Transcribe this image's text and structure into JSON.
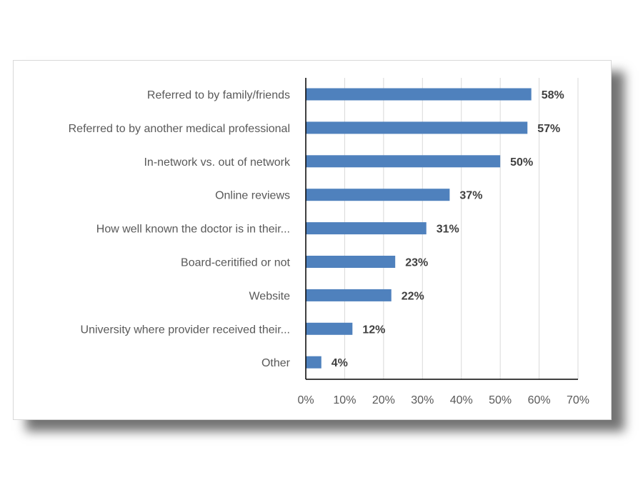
{
  "chart_data": {
    "type": "bar",
    "orientation": "horizontal",
    "categories": [
      "Referred to by family/friends",
      "Referred to by another medical professional",
      "In-network vs. out of network",
      "Online reviews",
      "How well known the doctor is in their...",
      "Board-ceritified or not",
      "Website",
      "University where provider received their...",
      "Other"
    ],
    "values": [
      58,
      57,
      50,
      37,
      31,
      23,
      22,
      12,
      4
    ],
    "value_labels": [
      "58%",
      "57%",
      "50%",
      "37%",
      "31%",
      "23%",
      "22%",
      "12%",
      "4%"
    ],
    "xlim": [
      0,
      70
    ],
    "ticks": [
      0,
      10,
      20,
      30,
      40,
      50,
      60,
      70
    ],
    "tick_labels": [
      "0%",
      "10%",
      "20%",
      "30%",
      "40%",
      "50%",
      "60%",
      "70%"
    ],
    "title": "",
    "xlabel": "",
    "ylabel": "",
    "grid": "vertical",
    "legend": "none",
    "bar_color": "#4f81bd"
  }
}
